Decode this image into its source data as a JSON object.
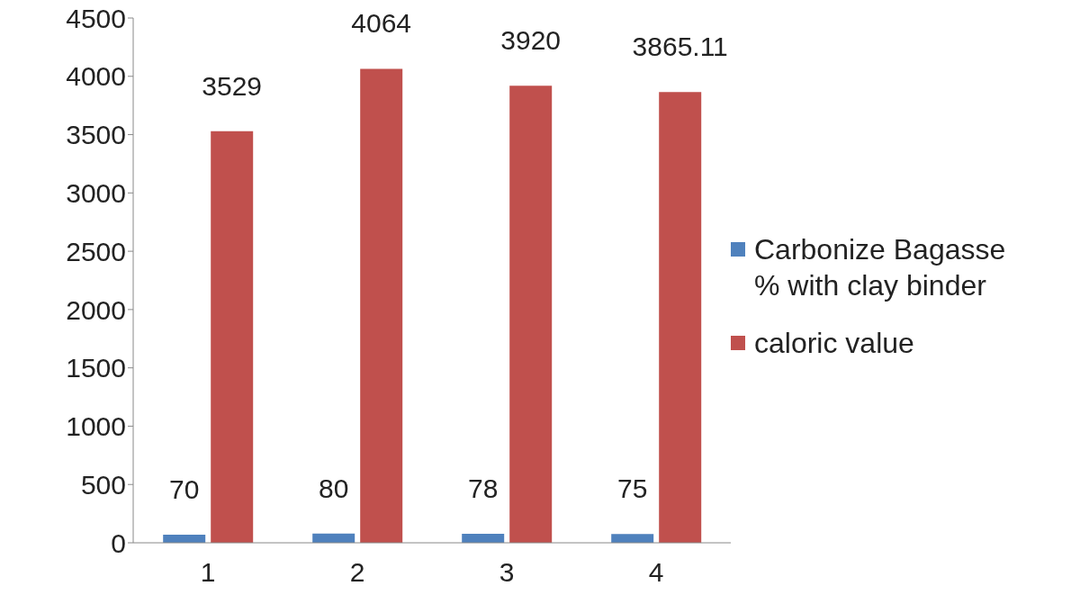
{
  "chart_data": {
    "type": "bar",
    "categories": [
      "1",
      "2",
      "3",
      "4"
    ],
    "series": [
      {
        "name": "Carbonize Bagasse  % with clay binder",
        "color": "#4f81bd",
        "values": [
          70,
          80,
          78,
          75
        ]
      },
      {
        "name": "caloric value",
        "color": "#c0504d",
        "values": [
          3529,
          4064,
          3920,
          3865.11
        ]
      }
    ],
    "ylim": [
      0,
      4500
    ],
    "yticks": [
      0,
      500,
      1000,
      1500,
      2000,
      2500,
      3000,
      3500,
      4000,
      4500
    ],
    "grid": false,
    "legend": "right",
    "data_labels": true
  }
}
